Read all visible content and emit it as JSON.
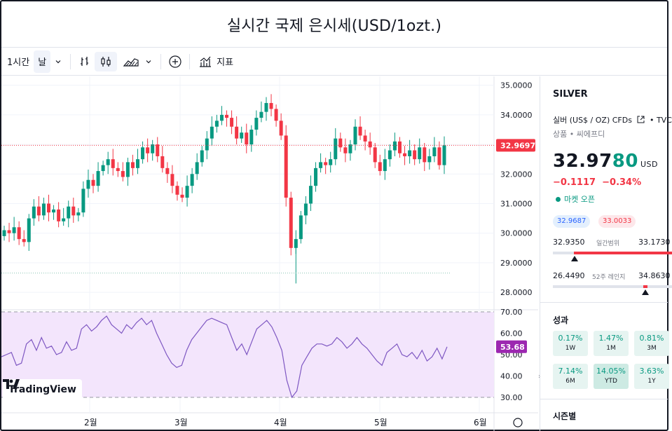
{
  "title": "실시간 국제 은시세(USD/1ozt.)",
  "toolbar": {
    "interval": "1시간",
    "interval_day": "날",
    "indicators_label": "지표"
  },
  "chart": {
    "price_ticks": [
      "35.0000",
      "34.0000",
      "33.0000",
      "32.0000",
      "31.0000",
      "30.0000",
      "29.0000",
      "28.0000"
    ],
    "rsi_ticks": [
      "70.00",
      "60.00",
      "50.00",
      "40.00",
      "30.00"
    ],
    "x_ticks": [
      "2월",
      "3월",
      "4월",
      "5월",
      "6월"
    ],
    "last_price_label": "32.9697",
    "rsi_label": "53.68",
    "logo_text": "TradingView"
  },
  "chart_data": {
    "type": "candlestick",
    "ylim": [
      27.6,
      35.3
    ],
    "x_months": [
      "2월",
      "3월",
      "4월",
      "5월",
      "6월"
    ],
    "last_price": 32.9697,
    "rsi_last": 53.68,
    "rsi_bands": [
      30,
      70
    ],
    "close_series": [
      30.1,
      30.0,
      30.2,
      29.8,
      29.7,
      30.5,
      30.9,
      30.6,
      31.0,
      30.7,
      30.8,
      30.4,
      30.5,
      30.9,
      30.6,
      30.7,
      31.5,
      31.8,
      31.6,
      32.1,
      32.3,
      32.5,
      32.2,
      32.1,
      31.9,
      32.4,
      32.2,
      32.5,
      32.9,
      32.7,
      33.0,
      32.6,
      32.2,
      32.0,
      31.6,
      31.3,
      31.2,
      31.6,
      32.0,
      32.4,
      32.8,
      33.2,
      33.6,
      33.8,
      34.0,
      33.9,
      33.6,
      33.2,
      33.4,
      33.0,
      33.5,
      33.9,
      34.1,
      34.4,
      34.2,
      33.8,
      33.3,
      31.2,
      29.5,
      29.8,
      30.6,
      31.0,
      31.6,
      32.2,
      32.4,
      32.3,
      32.5,
      33.2,
      32.9,
      32.7,
      33.0,
      33.6,
      33.3,
      33.1,
      32.9,
      32.4,
      32.1,
      32.5,
      32.8,
      33.1,
      32.7,
      32.6,
      32.8,
      32.5,
      32.9,
      32.4,
      32.6,
      32.9,
      32.3,
      32.97
    ],
    "rsi_series": [
      49,
      50,
      51,
      45,
      46,
      55,
      57,
      52,
      58,
      53,
      54,
      50,
      51,
      56,
      52,
      53,
      62,
      64,
      61,
      63,
      66,
      68,
      64,
      62,
      60,
      64,
      62,
      65,
      67,
      64,
      66,
      60,
      55,
      50,
      46,
      44,
      45,
      52,
      57,
      60,
      63,
      66,
      67,
      66,
      65,
      64,
      58,
      52,
      55,
      50,
      56,
      62,
      64,
      66,
      63,
      58,
      52,
      38,
      30,
      33,
      45,
      49,
      53,
      55,
      55,
      54,
      55,
      58,
      56,
      53,
      55,
      58,
      55,
      53,
      50,
      47,
      45,
      51,
      53,
      55,
      50,
      49,
      51,
      48,
      52,
      47,
      49,
      53,
      48,
      53.68
    ]
  },
  "panel": {
    "symbol": "SILVER",
    "description": "실버 (US$ / OZ) CFDs",
    "exchange": "TVC",
    "category": "상품 • 씨에프디",
    "price_main": "32.97",
    "price_tail": "80",
    "currency": "USD",
    "change": "−0.1117",
    "change_pct": "−0.34%",
    "market_status": "마켓 오픈",
    "bid": "32.9687",
    "ask": "33.0033",
    "day_low": "32.9350",
    "day_label": "일간범위",
    "day_high": "33.1730",
    "week_low": "26.4490",
    "week_label": "52주 레인지",
    "week_high": "34.8630",
    "day_position": 0.0,
    "week_position": 0.77,
    "perf_title": "성과",
    "perf": [
      {
        "value": "0.17%",
        "period": "1W"
      },
      {
        "value": "1.47%",
        "period": "1M"
      },
      {
        "value": "0.81%",
        "period": "3M"
      },
      {
        "value": "7.14%",
        "period": "6M"
      },
      {
        "value": "14.05%",
        "period": "YTD"
      },
      {
        "value": "3.63%",
        "period": "1Y"
      }
    ],
    "seasonal_title": "시즌별"
  },
  "colors": {
    "up": "#089981",
    "down": "#f23645",
    "rsi_line": "#7e57c2",
    "rsi_band": "#f3e5fc"
  }
}
